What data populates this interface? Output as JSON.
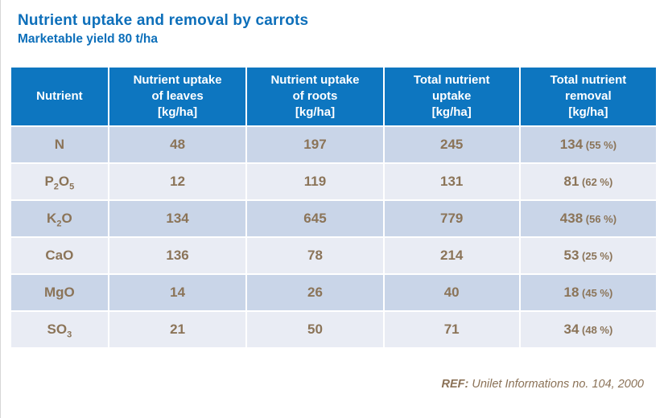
{
  "header": {
    "title": "Nutrient uptake and removal by carrots",
    "subtitle": "Marketable yield 80 t/ha"
  },
  "table": {
    "columns": [
      {
        "lines": [
          "Nutrient"
        ]
      },
      {
        "lines": [
          "Nutrient uptake",
          "of leaves",
          "[kg/ha]"
        ]
      },
      {
        "lines": [
          "Nutrient uptake",
          "of roots",
          "[kg/ha]"
        ]
      },
      {
        "lines": [
          "Total nutrient",
          "uptake",
          "[kg/ha]"
        ]
      },
      {
        "lines": [
          "Total nutrient",
          "removal",
          "[kg/ha]"
        ]
      }
    ],
    "rows": [
      {
        "nutrient": [
          {
            "s": "N"
          }
        ],
        "leaves": "48",
        "roots": "197",
        "total_uptake": "245",
        "removal": "134",
        "removal_pct": "(55 %)"
      },
      {
        "nutrient": [
          {
            "s": "P"
          },
          {
            "s": "2",
            "sub": true
          },
          {
            "s": "O"
          },
          {
            "s": "5",
            "sub": true
          }
        ],
        "leaves": "12",
        "roots": "119",
        "total_uptake": "131",
        "removal": "81",
        "removal_pct": "(62 %)"
      },
      {
        "nutrient": [
          {
            "s": "K"
          },
          {
            "s": "2",
            "sub": true
          },
          {
            "s": "O"
          }
        ],
        "leaves": "134",
        "roots": "645",
        "total_uptake": "779",
        "removal": "438",
        "removal_pct": "(56 %)"
      },
      {
        "nutrient": [
          {
            "s": "CaO"
          }
        ],
        "leaves": "136",
        "roots": "78",
        "total_uptake": "214",
        "removal": "53",
        "removal_pct": "(25 %)"
      },
      {
        "nutrient": [
          {
            "s": "MgO"
          }
        ],
        "leaves": "14",
        "roots": "26",
        "total_uptake": "40",
        "removal": "18",
        "removal_pct": "(45 %)"
      },
      {
        "nutrient": [
          {
            "s": "SO"
          },
          {
            "s": "3",
            "sub": true
          }
        ],
        "leaves": "21",
        "roots": "50",
        "total_uptake": "71",
        "removal": "34",
        "removal_pct": "(48 %)"
      }
    ]
  },
  "footer": {
    "ref_label": "REF:",
    "ref_text": " Unilet Informations no. 104, 2000"
  },
  "colors": {
    "title_blue": "#0d6fba",
    "header_bg": "#0d76c0",
    "row_dark": "#c9d5e8",
    "row_light": "#e9ecf4",
    "cell_text": "#8b7458",
    "ref_text": "#8a7156"
  }
}
